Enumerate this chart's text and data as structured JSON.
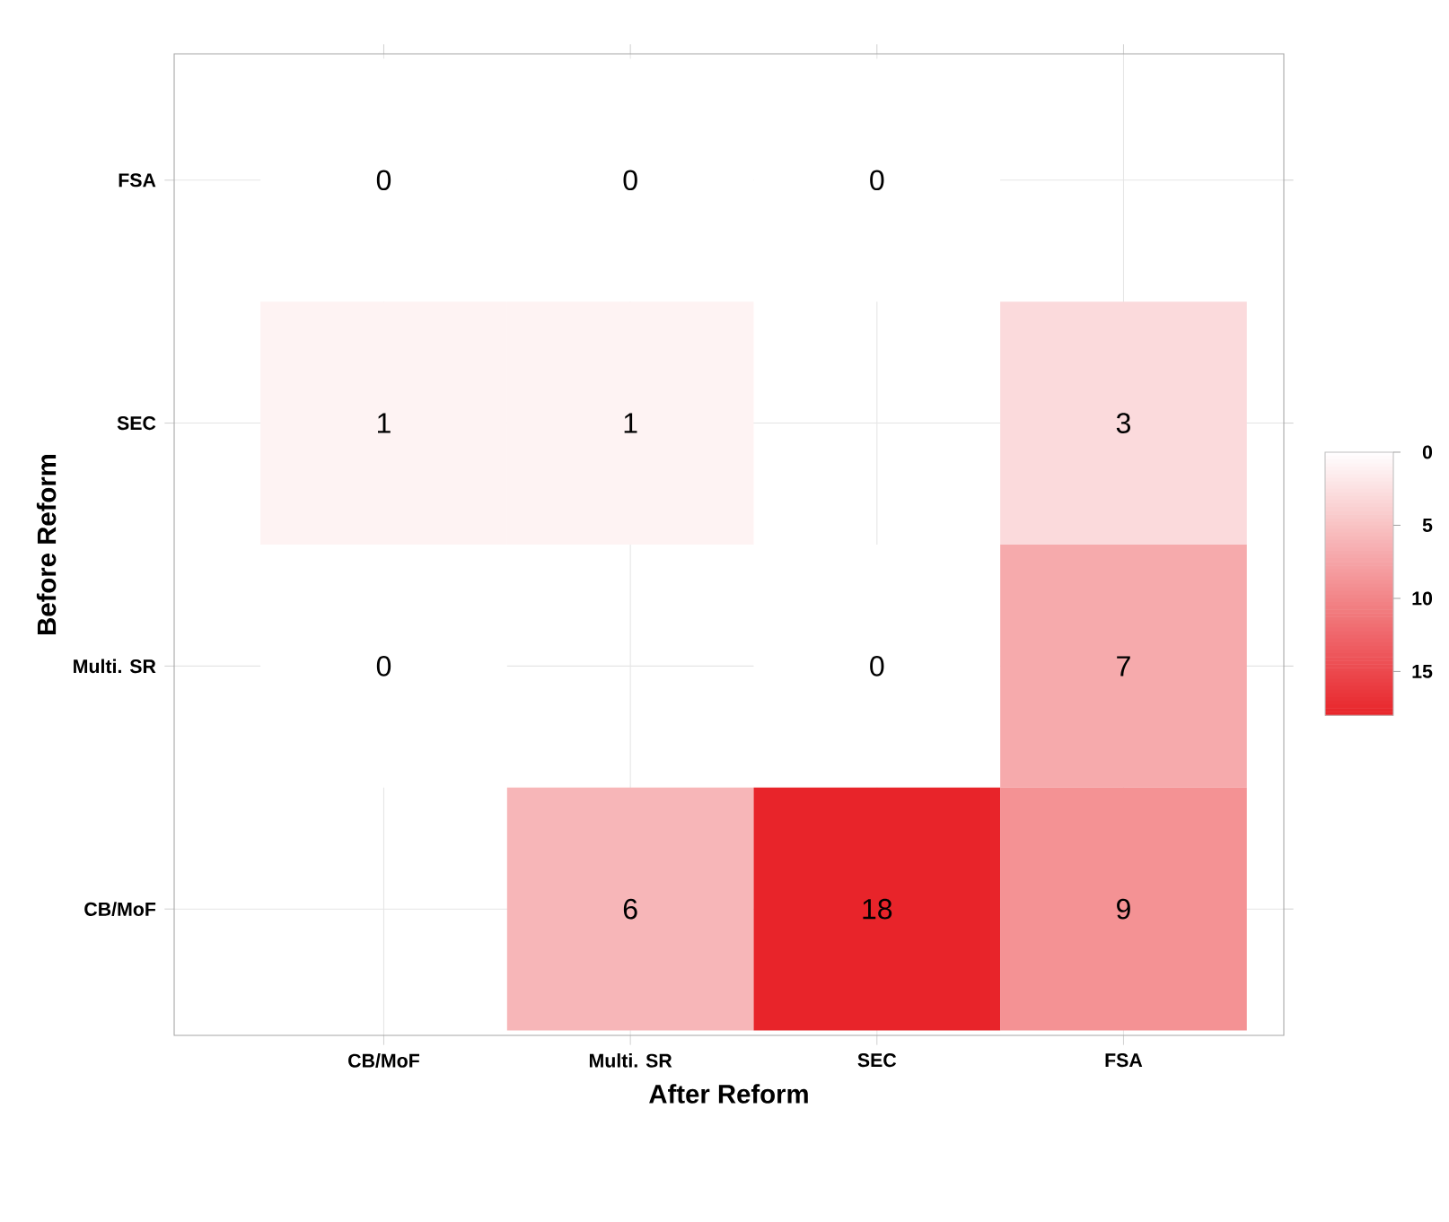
{
  "chart_data": {
    "type": "heatmap",
    "xlabel": "After Reform",
    "ylabel": "Before Reform",
    "categories": [
      "CB/MoF",
      "Multi. SR",
      "SEC",
      "FSA"
    ],
    "y_categories": [
      "FSA",
      "SEC",
      "Multi. SR",
      "CB/MoF"
    ],
    "cells": [
      [
        0,
        0,
        0,
        null
      ],
      [
        1,
        1,
        null,
        3
      ],
      [
        0,
        null,
        0,
        7
      ],
      [
        null,
        6,
        18,
        9
      ]
    ],
    "clim": [
      0,
      18
    ],
    "cticks": [
      0,
      5,
      10,
      15
    ],
    "color": "#e8242a",
    "data_labels": true,
    "grid": true
  }
}
